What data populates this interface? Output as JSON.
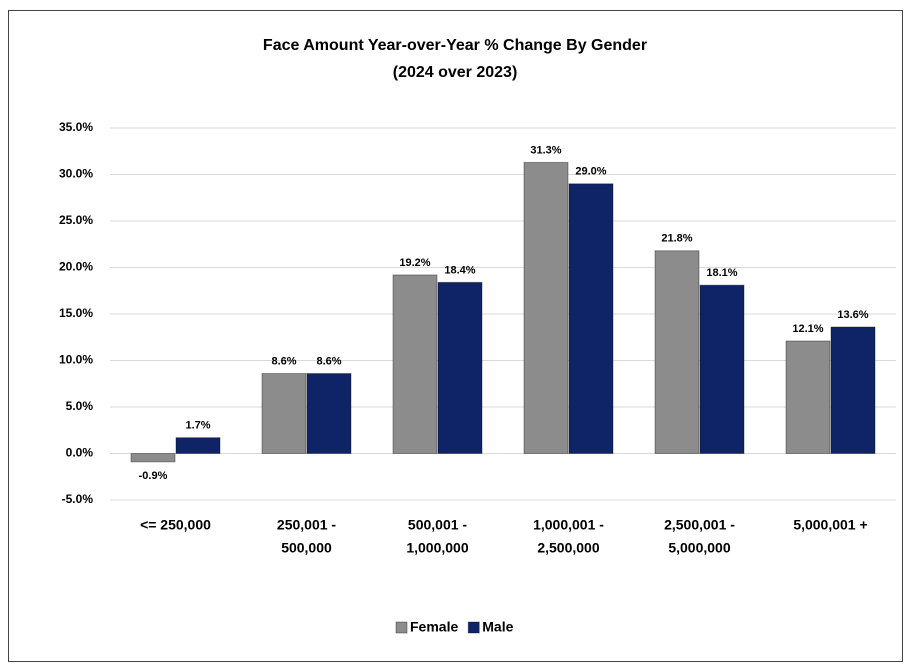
{
  "chart_data": {
    "type": "bar",
    "title": "Face Amount Year-over-Year % Change By Gender",
    "subtitle": "(2024 over 2023)",
    "categories": [
      [
        "<= 250,000"
      ],
      [
        "250,001 -",
        "500,000"
      ],
      [
        "500,001 -",
        "1,000,000"
      ],
      [
        "1,000,001 -",
        "2,500,000"
      ],
      [
        "2,500,001 -",
        "5,000,000"
      ],
      [
        "5,000,001 +"
      ]
    ],
    "series": [
      {
        "name": "Female",
        "color": "#8c8c8c",
        "values": [
          -0.9,
          8.6,
          19.2,
          31.3,
          21.8,
          12.1
        ],
        "value_labels": [
          "-0.9%",
          "8.6%",
          "19.2%",
          "31.3%",
          "21.8%",
          "12.1%"
        ]
      },
      {
        "name": "Male",
        "color": "#0f2466",
        "values": [
          1.7,
          8.6,
          18.4,
          29.0,
          18.1,
          13.6
        ],
        "value_labels": [
          "1.7%",
          "8.6%",
          "18.4%",
          "29.0%",
          "18.1%",
          "13.6%"
        ]
      }
    ],
    "ylim": [
      -5,
      35
    ],
    "yticks": [
      {
        "value": -5,
        "label": "-5.0%"
      },
      {
        "value": 0,
        "label": "0.0%"
      },
      {
        "value": 5,
        "label": "5.0%"
      },
      {
        "value": 10,
        "label": "10.0%"
      },
      {
        "value": 15,
        "label": "15.0%"
      },
      {
        "value": 20,
        "label": "20.0%"
      },
      {
        "value": 25,
        "label": "25.0%"
      },
      {
        "value": 30,
        "label": "30.0%"
      },
      {
        "value": 35,
        "label": "35.0%"
      }
    ],
    "grid": true,
    "legend": "bottom"
  }
}
